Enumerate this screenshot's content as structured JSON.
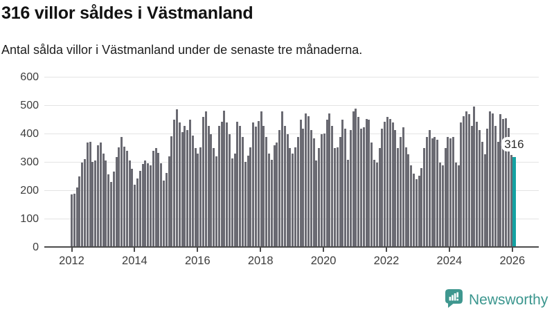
{
  "header": {
    "title": "316 villor såldes i Västmanland",
    "subtitle": "Antal sålda villor i Västmanland under de senaste tre månaderna."
  },
  "chart_data": {
    "type": "bar",
    "title": "316 villor såldes i Västmanland",
    "subtitle": "Antal sålda villor i Västmanland under de senaste tre månaderna.",
    "x_start_year": 2012,
    "points_per_year": 12,
    "values": [
      185,
      188,
      210,
      250,
      298,
      310,
      368,
      372,
      300,
      305,
      358,
      368,
      330,
      305,
      255,
      230,
      265,
      318,
      352,
      388,
      355,
      338,
      305,
      275,
      220,
      242,
      268,
      292,
      305,
      295,
      288,
      338,
      350,
      332,
      296,
      235,
      262,
      320,
      390,
      448,
      485,
      440,
      405,
      428,
      412,
      448,
      392,
      348,
      330,
      352,
      458,
      478,
      428,
      398,
      350,
      320,
      428,
      442,
      480,
      438,
      398,
      312,
      330,
      442,
      428,
      388,
      300,
      322,
      352,
      438,
      425,
      445,
      478,
      428,
      388,
      330,
      308,
      358,
      368,
      412,
      478,
      428,
      398,
      348,
      330,
      352,
      388,
      448,
      418,
      472,
      462,
      412,
      382,
      305,
      348,
      398,
      400,
      448,
      472,
      428,
      348,
      352,
      388,
      448,
      418,
      308,
      412,
      478,
      488,
      458,
      418,
      422,
      452,
      448,
      368,
      308,
      298,
      348,
      418,
      442,
      458,
      452,
      438,
      412,
      348,
      388,
      422,
      352,
      328,
      288,
      258,
      238,
      252,
      278,
      348,
      388,
      412,
      382,
      388,
      378,
      298,
      288,
      348,
      388,
      382,
      388,
      298,
      288,
      438,
      462,
      478,
      468,
      428,
      495,
      442,
      412,
      372,
      328,
      418,
      478,
      472,
      428,
      372,
      468,
      452,
      455,
      420,
      325,
      316
    ],
    "highlight": {
      "index": 168,
      "value": 316,
      "label": "316"
    },
    "ylim": [
      0,
      600
    ],
    "y_ticks": [
      0,
      100,
      200,
      300,
      400,
      500,
      600
    ],
    "x_ticks": [
      2012,
      2014,
      2016,
      2018,
      2020,
      2022,
      2024,
      2026
    ],
    "grid": "horizontal",
    "legend": "none"
  },
  "colors": {
    "bar": "#6a6a72",
    "highlight": "#14a1a2",
    "gridline": "#e3e3e3",
    "axis": "#4b4b4b",
    "brand_teal": "#3b968e"
  },
  "brand": {
    "name": "Newsworthy"
  }
}
